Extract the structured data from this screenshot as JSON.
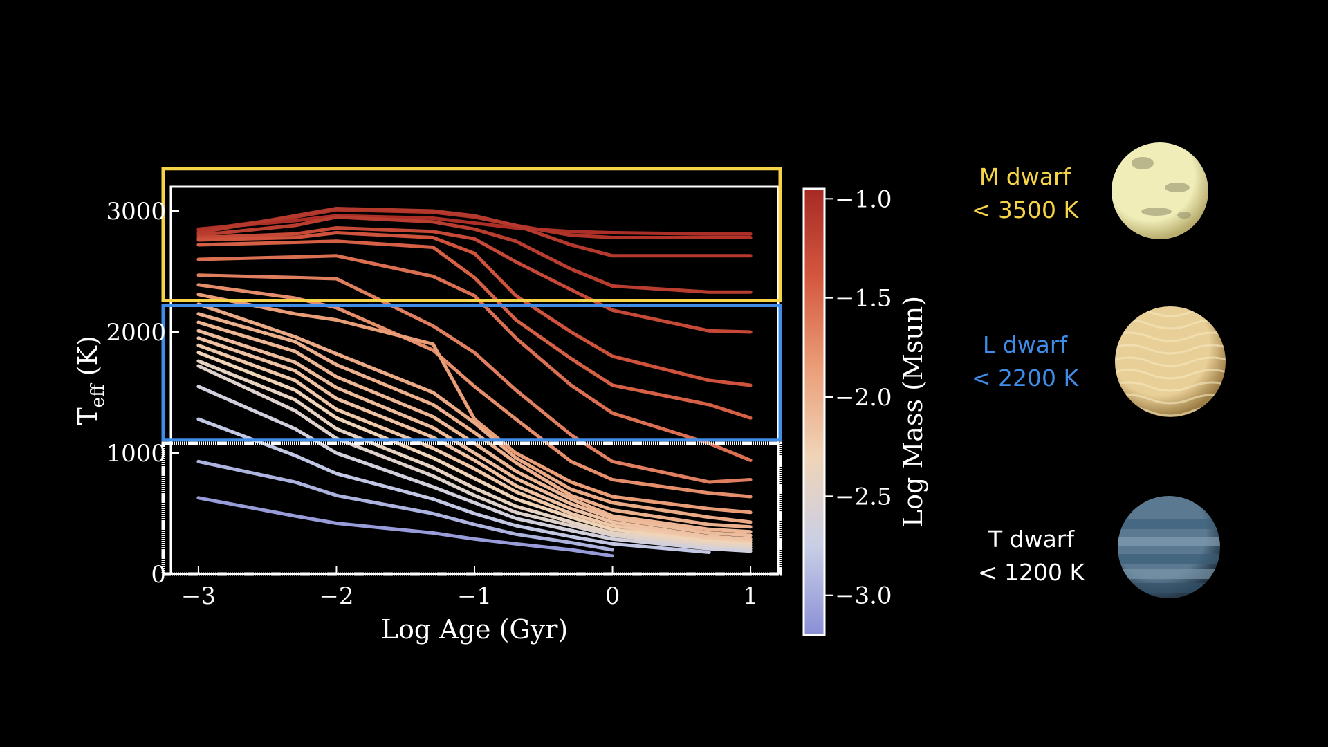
{
  "chart_data": {
    "type": "line",
    "xlabel": "Log Age (Gyr)",
    "ylabel_main": "T",
    "ylabel_sub": "eff",
    "ylabel_unit": " (K)",
    "xlim": [
      -3.2,
      1.2
    ],
    "ylim": [
      0,
      3200
    ],
    "xticks": [
      -3,
      -2,
      -1,
      0,
      1
    ],
    "xtick_labels": [
      "−3",
      "−2",
      "−1",
      "0",
      "1"
    ],
    "yticks": [
      0,
      1000,
      2000,
      3000
    ],
    "ytick_labels": [
      "0",
      "1000",
      "2000",
      "3000"
    ],
    "colorbar": {
      "label": "Log Mass (Msun)",
      "range": [
        -3.2,
        -0.95
      ],
      "ticks": [
        -1.0,
        -1.5,
        -2.0,
        -2.5,
        -3.0
      ],
      "tick_labels": [
        "−1.0",
        "−1.5",
        "−2.0",
        "−2.5",
        "−3.0"
      ],
      "colors": [
        "#8a8fd6",
        "#c9cfe6",
        "#f0d4b8",
        "#ea9e78",
        "#d4583f",
        "#a62a24"
      ]
    },
    "x": [
      -3,
      -2.3,
      -2,
      -1.3,
      -1,
      -0.7,
      -0.3,
      0,
      0.7,
      1
    ],
    "series": [
      {
        "mass": -1.0,
        "values": [
          2850,
          2920,
          2960,
          2940,
          2900,
          2860,
          2830,
          2820,
          2810,
          2810
        ]
      },
      {
        "mass": -1.05,
        "values": [
          2840,
          2950,
          3010,
          2990,
          2950,
          2880,
          2800,
          2780,
          2780,
          2780
        ]
      },
      {
        "mass": -1.1,
        "values": [
          2820,
          2960,
          3020,
          3000,
          2960,
          2880,
          2720,
          2630,
          2630,
          2630
        ]
      },
      {
        "mass": -1.15,
        "values": [
          2800,
          2880,
          2950,
          2910,
          2850,
          2750,
          2520,
          2380,
          2330,
          2330
        ]
      },
      {
        "mass": -1.25,
        "values": [
          2780,
          2810,
          2860,
          2830,
          2770,
          2580,
          2350,
          2180,
          2010,
          2000
        ]
      },
      {
        "mass": -1.35,
        "values": [
          2760,
          2780,
          2820,
          2780,
          2650,
          2300,
          2000,
          1800,
          1600,
          1560
        ]
      },
      {
        "mass": -1.45,
        "values": [
          2720,
          2740,
          2750,
          2700,
          2450,
          2100,
          1780,
          1560,
          1400,
          1290
        ]
      },
      {
        "mass": -1.55,
        "values": [
          2600,
          2620,
          2630,
          2460,
          2300,
          1950,
          1560,
          1330,
          1080,
          940
        ]
      },
      {
        "mass": -1.65,
        "values": [
          2470,
          2450,
          2440,
          2050,
          1830,
          1520,
          1150,
          930,
          760,
          780
        ]
      },
      {
        "mass": -1.75,
        "values": [
          2390,
          2280,
          2200,
          1850,
          1550,
          1280,
          930,
          780,
          670,
          640
        ]
      },
      {
        "mass": -1.85,
        "values": [
          2310,
          2150,
          2100,
          1900,
          1280,
          1000,
          760,
          640,
          540,
          510
        ]
      },
      {
        "mass": -1.95,
        "values": [
          2230,
          1960,
          1820,
          1500,
          1250,
          960,
          700,
          590,
          470,
          430
        ]
      },
      {
        "mass": -2.0,
        "values": [
          2150,
          1920,
          1730,
          1400,
          1170,
          920,
          650,
          530,
          410,
          390
        ]
      },
      {
        "mass": -2.05,
        "values": [
          2080,
          1840,
          1630,
          1300,
          1080,
          850,
          620,
          480,
          370,
          350
        ]
      },
      {
        "mass": -2.1,
        "values": [
          2010,
          1750,
          1540,
          1210,
          1000,
          790,
          580,
          460,
          340,
          320
        ]
      },
      {
        "mass": -2.15,
        "values": [
          1950,
          1680,
          1450,
          1130,
          940,
          730,
          540,
          430,
          310,
          290
        ]
      },
      {
        "mass": -2.2,
        "values": [
          1890,
          1600,
          1360,
          1040,
          870,
          680,
          500,
          400,
          290,
          270
        ]
      },
      {
        "mass": -2.3,
        "values": [
          1830,
          1520,
          1290,
          960,
          790,
          620,
          470,
          370,
          270,
          250
        ]
      },
      {
        "mass": -2.4,
        "values": [
          1760,
          1440,
          1200,
          880,
          710,
          560,
          430,
          340,
          250,
          230
        ]
      },
      {
        "mass": -2.5,
        "values": [
          1720,
          1350,
          1120,
          810,
          650,
          510,
          400,
          320,
          230,
          210
        ]
      },
      {
        "mass": -2.65,
        "values": [
          1550,
          1200,
          1000,
          720,
          590,
          460,
          360,
          290,
          210,
          190
        ]
      },
      {
        "mass": -2.8,
        "values": [
          1280,
          980,
          830,
          620,
          500,
          400,
          310,
          250,
          180,
          null
        ]
      },
      {
        "mass": -2.95,
        "values": [
          930,
          760,
          650,
          500,
          410,
          330,
          260,
          200,
          null,
          null
        ]
      },
      {
        "mass": -3.1,
        "values": [
          630,
          480,
          420,
          340,
          290,
          250,
          200,
          150,
          null,
          null
        ]
      }
    ],
    "regions": [
      {
        "label_line1": "M dwarf",
        "label_line2": "< 3500 K",
        "color": "#f5d547",
        "y_range": [
          2260,
          3350
        ]
      },
      {
        "label_line1": "L dwarf",
        "label_line2": "< 2200 K",
        "color": "#3f8de8",
        "y_range": [
          1110,
          2220
        ]
      },
      {
        "label_line1": "T dwarf",
        "label_line2": "< 1200 K",
        "color": "#ffffff",
        "y_range": [
          0,
          1080
        ]
      }
    ]
  },
  "planets": [
    {
      "name": "m-dwarf-planet",
      "base": "#f0edb8",
      "edge": "#b8ad6e",
      "pattern": "spots"
    },
    {
      "name": "l-dwarf-planet",
      "base": "#e8cf97",
      "edge": "#9c7d45",
      "pattern": "cells"
    },
    {
      "name": "t-dwarf-planet",
      "base": "#5b7a92",
      "edge": "#263a4a",
      "pattern": "bands"
    }
  ]
}
